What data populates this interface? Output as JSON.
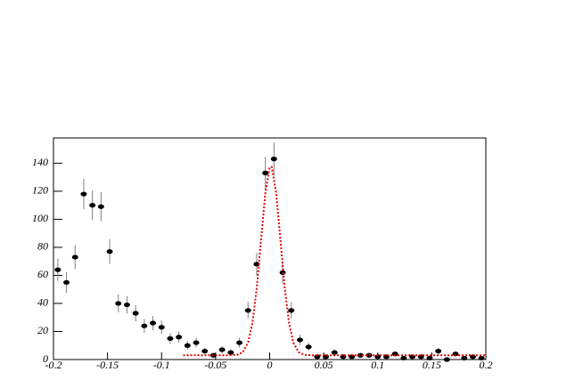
{
  "chart_data": {
    "type": "scatter",
    "xlim": [
      -0.2,
      0.2
    ],
    "ylim": [
      0,
      158
    ],
    "xticks": [
      -0.2,
      -0.15,
      -0.1,
      -0.05,
      0,
      0.05,
      0.1,
      0.15,
      0.2
    ],
    "yticks": [
      0,
      20,
      40,
      60,
      80,
      100,
      120,
      140
    ],
    "points": {
      "color": "#000000",
      "error_color": "#808080",
      "x": [
        -0.196,
        -0.188,
        -0.18,
        -0.172,
        -0.164,
        -0.156,
        -0.148,
        -0.14,
        -0.132,
        -0.124,
        -0.116,
        -0.108,
        -0.1,
        -0.092,
        -0.084,
        -0.076,
        -0.068,
        -0.06,
        -0.052,
        -0.044,
        -0.036,
        -0.028,
        -0.02,
        -0.012,
        -0.004,
        0.004,
        0.012,
        0.02,
        0.028,
        0.036,
        0.044,
        0.052,
        0.06,
        0.068,
        0.076,
        0.084,
        0.092,
        0.1,
        0.108,
        0.116,
        0.124,
        0.132,
        0.14,
        0.148,
        0.156,
        0.164,
        0.172,
        0.18,
        0.188,
        0.196
      ],
      "values": [
        64,
        55,
        73,
        118,
        110,
        109,
        77,
        40,
        39,
        33,
        24,
        26,
        23,
        15,
        16,
        10,
        12,
        6,
        3,
        7,
        5,
        12,
        35,
        68,
        133,
        143,
        62,
        35,
        14,
        9,
        2,
        2,
        5,
        2,
        2,
        3,
        3,
        2,
        2,
        4,
        1,
        2,
        2,
        1,
        6,
        0,
        4,
        1,
        2,
        1
      ],
      "errors": [
        8,
        7.4,
        8.5,
        10.9,
        10.5,
        10.4,
        8.8,
        6.3,
        6.2,
        5.7,
        4.9,
        5.1,
        4.8,
        3.9,
        4,
        3.2,
        3.5,
        2.4,
        1.7,
        2.6,
        2.2,
        3.5,
        5.9,
        8.2,
        11.5,
        12,
        7.9,
        5.9,
        3.7,
        3,
        1.4,
        1.4,
        2.2,
        1.4,
        1.4,
        1.7,
        1.7,
        1.4,
        1.4,
        2,
        1,
        1.4,
        1.4,
        1,
        2.4,
        0,
        2,
        1,
        1.4,
        1
      ]
    },
    "fit": {
      "color": "#e00000",
      "x": [
        -0.08,
        -0.04,
        -0.03,
        -0.025,
        -0.02,
        -0.016,
        -0.012,
        -0.008,
        -0.004,
        0,
        0.002,
        0.006,
        0.01,
        0.014,
        0.018,
        0.022,
        0.027,
        0.032,
        0.04,
        0.2
      ],
      "values": [
        3,
        3,
        3.4,
        5.1,
        11.9,
        25.7,
        50.6,
        84.9,
        118.7,
        137.2,
        137.2,
        118.7,
        84.9,
        50.6,
        25.7,
        11.9,
        5.1,
        3.4,
        3,
        3
      ]
    }
  }
}
